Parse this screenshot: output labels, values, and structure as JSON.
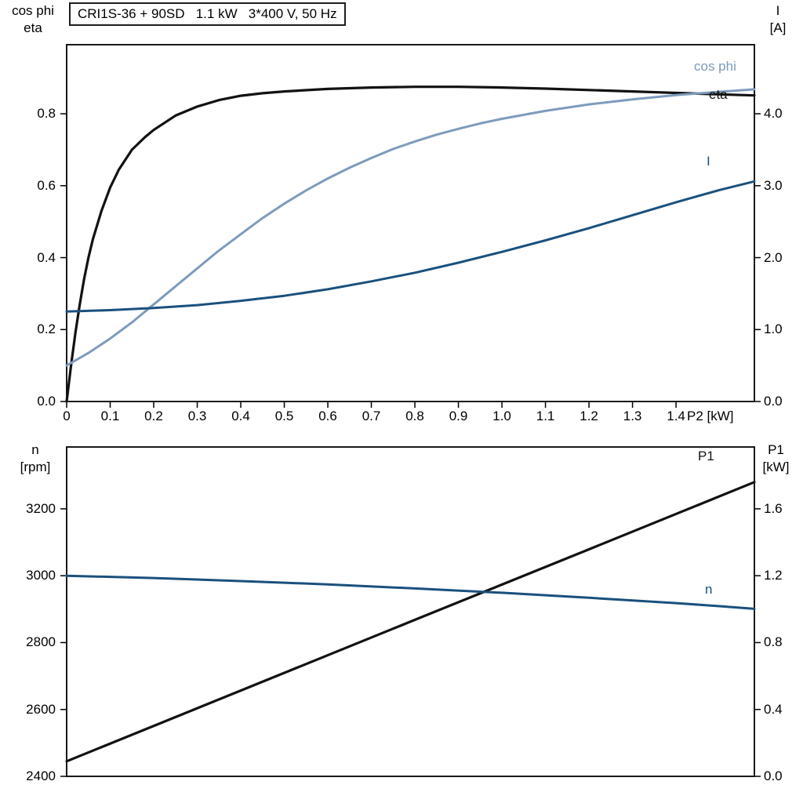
{
  "title": "CRI1S-36 + 90SD   1.1 kW   3*400 V, 50 Hz",
  "colors": {
    "black": "#121212",
    "dark_blue": "#1a507d",
    "steel_blue": "#7d9bbc",
    "frame": "#000000"
  },
  "chart_data": [
    {
      "type": "line",
      "name": "motor-electrical-curves",
      "left_axis_title": [
        "cos phi",
        "eta"
      ],
      "right_axis_title": [
        "I",
        "[A]"
      ],
      "x_axis_label": "P2 [kW]",
      "x_range": [
        0,
        1.58
      ],
      "x_ticks": {
        "values": [
          0,
          0.1,
          0.2,
          0.3,
          0.4,
          0.5,
          0.6,
          0.7,
          0.8,
          0.9,
          1.0,
          1.1,
          1.2,
          1.3,
          1.4
        ],
        "labels": [
          "0",
          "0.1",
          "0.2",
          "0.3",
          "0.4",
          "0.5",
          "0.6",
          "0.7",
          "0.8",
          "0.9",
          "1.0",
          "1.1",
          "1.2",
          "1.3",
          "1.4"
        ]
      },
      "y_left": {
        "range": [
          0,
          0.992
        ],
        "tick_values": [
          0,
          0.2,
          0.4,
          0.6,
          0.8
        ],
        "tick_labels": [
          "0.0",
          "0.2",
          "0.4",
          "0.6",
          "0.8"
        ]
      },
      "y_right": {
        "range": [
          0,
          4.96
        ],
        "tick_values": [
          0,
          1,
          2,
          3,
          4
        ],
        "tick_labels": [
          "0.0",
          "1.0",
          "2.0",
          "3.0",
          "4.0"
        ]
      },
      "grid": false,
      "series": [
        {
          "name": "eta",
          "label": "eta",
          "axis": "left",
          "color_key": "black",
          "points": [
            [
              0,
              0
            ],
            [
              0.01,
              0.1
            ],
            [
              0.02,
              0.19
            ],
            [
              0.03,
              0.27
            ],
            [
              0.04,
              0.34
            ],
            [
              0.05,
              0.4
            ],
            [
              0.06,
              0.45
            ],
            [
              0.08,
              0.53
            ],
            [
              0.1,
              0.595
            ],
            [
              0.12,
              0.645
            ],
            [
              0.15,
              0.7
            ],
            [
              0.18,
              0.735
            ],
            [
              0.2,
              0.755
            ],
            [
              0.25,
              0.795
            ],
            [
              0.3,
              0.82
            ],
            [
              0.35,
              0.838
            ],
            [
              0.4,
              0.85
            ],
            [
              0.45,
              0.857
            ],
            [
              0.5,
              0.862
            ],
            [
              0.6,
              0.869
            ],
            [
              0.7,
              0.873
            ],
            [
              0.8,
              0.875
            ],
            [
              0.9,
              0.875
            ],
            [
              1.0,
              0.873
            ],
            [
              1.1,
              0.87
            ],
            [
              1.2,
              0.866
            ],
            [
              1.3,
              0.862
            ],
            [
              1.4,
              0.858
            ],
            [
              1.5,
              0.854
            ],
            [
              1.58,
              0.851
            ]
          ]
        },
        {
          "name": "cos-phi",
          "label": "cos phi",
          "axis": "left",
          "color_key": "steel_blue",
          "points": [
            [
              0,
              0.1
            ],
            [
              0.05,
              0.135
            ],
            [
              0.1,
              0.175
            ],
            [
              0.15,
              0.22
            ],
            [
              0.2,
              0.27
            ],
            [
              0.25,
              0.32
            ],
            [
              0.3,
              0.37
            ],
            [
              0.35,
              0.42
            ],
            [
              0.4,
              0.465
            ],
            [
              0.45,
              0.51
            ],
            [
              0.5,
              0.55
            ],
            [
              0.55,
              0.587
            ],
            [
              0.6,
              0.62
            ],
            [
              0.65,
              0.65
            ],
            [
              0.7,
              0.677
            ],
            [
              0.75,
              0.702
            ],
            [
              0.8,
              0.723
            ],
            [
              0.85,
              0.742
            ],
            [
              0.9,
              0.758
            ],
            [
              0.95,
              0.773
            ],
            [
              1.0,
              0.786
            ],
            [
              1.1,
              0.808
            ],
            [
              1.2,
              0.826
            ],
            [
              1.3,
              0.84
            ],
            [
              1.4,
              0.852
            ],
            [
              1.5,
              0.861
            ],
            [
              1.58,
              0.868
            ]
          ]
        },
        {
          "name": "current",
          "label": "I",
          "axis": "right",
          "color_key": "dark_blue",
          "points": [
            [
              0,
              1.25
            ],
            [
              0.1,
              1.27
            ],
            [
              0.2,
              1.3
            ],
            [
              0.3,
              1.34
            ],
            [
              0.4,
              1.4
            ],
            [
              0.5,
              1.47
            ],
            [
              0.6,
              1.56
            ],
            [
              0.7,
              1.67
            ],
            [
              0.8,
              1.79
            ],
            [
              0.9,
              1.93
            ],
            [
              1.0,
              2.08
            ],
            [
              1.1,
              2.24
            ],
            [
              1.2,
              2.41
            ],
            [
              1.3,
              2.59
            ],
            [
              1.4,
              2.77
            ],
            [
              1.5,
              2.94
            ],
            [
              1.58,
              3.06
            ]
          ]
        }
      ]
    },
    {
      "type": "line",
      "name": "speed-and-input-power-curves",
      "left_axis_title": [
        "n",
        "[rpm]"
      ],
      "right_axis_title": [
        "P1",
        "[kW]"
      ],
      "x_axis_label": "",
      "x_range": [
        0,
        1.58
      ],
      "x_ticks": {
        "values": [],
        "labels": []
      },
      "y_left": {
        "range": [
          2400,
          3385
        ],
        "tick_values": [
          2400,
          2600,
          2800,
          3000,
          3200
        ],
        "tick_labels": [
          "2400",
          "2600",
          "2800",
          "3000",
          "3200"
        ]
      },
      "y_right": {
        "range": [
          0,
          1.97
        ],
        "tick_values": [
          0,
          0.4,
          0.8,
          1.2,
          1.6
        ],
        "tick_labels": [
          "0.0",
          "0.4",
          "0.8",
          "1.2",
          "1.6"
        ]
      },
      "grid": false,
      "series": [
        {
          "name": "input-power",
          "label": "P1",
          "axis": "right",
          "color_key": "black",
          "points": [
            [
              0,
              0.09
            ],
            [
              0.4,
              0.513
            ],
            [
              0.8,
              0.936
            ],
            [
              1.2,
              1.358
            ],
            [
              1.58,
              1.76
            ]
          ]
        },
        {
          "name": "speed",
          "label": "n",
          "axis": "left",
          "color_key": "dark_blue",
          "points": [
            [
              0,
              3000
            ],
            [
              0.2,
              2993
            ],
            [
              0.4,
              2984
            ],
            [
              0.6,
              2974
            ],
            [
              0.8,
              2962
            ],
            [
              1.0,
              2949
            ],
            [
              1.2,
              2934
            ],
            [
              1.4,
              2918
            ],
            [
              1.5,
              2909
            ],
            [
              1.58,
              2901
            ]
          ]
        }
      ]
    }
  ]
}
